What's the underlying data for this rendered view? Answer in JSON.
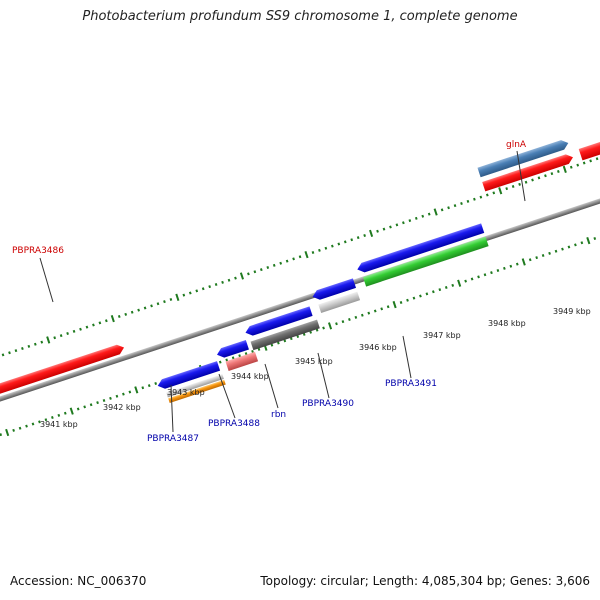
{
  "title": "Photobacterium profundum SS9 chromosome 1, complete genome",
  "footer": {
    "accession": "Accession: NC_006370",
    "summary": "Topology: circular; Length: 4,085,304 bp; Genes: 3,606"
  },
  "colors": {
    "backbone": "#8c8c8c",
    "ticks": "#1f7a1f",
    "forward_label": "#cc0000",
    "reverse_label": "#0000aa",
    "red": "#ee1111",
    "blue": "#1111dd",
    "steel": "#4a7fb5",
    "green": "#33cc33",
    "gray_light": "#cfcfcf",
    "gray_dark": "#6e6e6e",
    "pink": "#ee7777",
    "orange": "#f7950f"
  },
  "kbp_ticks": [
    "3941 kbp",
    "3942 kbp",
    "3943 kbp",
    "3944 kbp",
    "3945 kbp",
    "3946 kbp",
    "3947 kbp",
    "3948 kbp",
    "3949 kbp"
  ],
  "gene_labels": {
    "top": [
      {
        "text": "PBPRA3486",
        "color": "#cc0000"
      },
      {
        "text": "glnA",
        "color": "#cc0000"
      }
    ],
    "bottom": [
      {
        "text": "PBPRA3487",
        "color": "#0000aa"
      },
      {
        "text": "PBPRA3488",
        "color": "#0000aa"
      },
      {
        "text": "rbn",
        "color": "#0000aa"
      },
      {
        "text": "PBPRA3490",
        "color": "#0000aa"
      },
      {
        "text": "PBPRA3491",
        "color": "#0000aa"
      }
    ]
  },
  "features": [
    {
      "name": "PBPRA3486",
      "strand": "forward",
      "color": "#ee1111"
    },
    {
      "name": "glnA",
      "strand": "forward",
      "color": "#4a7fb5"
    },
    {
      "name": "glnA-cds",
      "strand": "forward",
      "color": "#ee1111"
    },
    {
      "name": "next-gene",
      "strand": "forward",
      "color": "#ee1111"
    },
    {
      "name": "PBPRA3487",
      "strand": "reverse",
      "color": "#1111dd"
    },
    {
      "name": "PBPRA3487-a",
      "strand": "reverse",
      "color": "#cfcfcf"
    },
    {
      "name": "PBPRA3487-b",
      "strand": "reverse",
      "color": "#f7950f"
    },
    {
      "name": "PBPRA3488",
      "strand": "reverse",
      "color": "#1111dd"
    },
    {
      "name": "PBPRA3488-a",
      "strand": "reverse",
      "color": "#ee7777"
    },
    {
      "name": "rbn",
      "strand": "reverse",
      "color": "#1111dd"
    },
    {
      "name": "rbn-a",
      "strand": "reverse",
      "color": "#6e6e6e"
    },
    {
      "name": "PBPRA3490",
      "strand": "reverse",
      "color": "#1111dd"
    },
    {
      "name": "PBPRA3490-a",
      "strand": "reverse",
      "color": "#cfcfcf"
    },
    {
      "name": "PBPRA3491",
      "strand": "reverse",
      "color": "#1111dd"
    },
    {
      "name": "PBPRA3491-a",
      "strand": "reverse",
      "color": "#33cc33"
    }
  ]
}
